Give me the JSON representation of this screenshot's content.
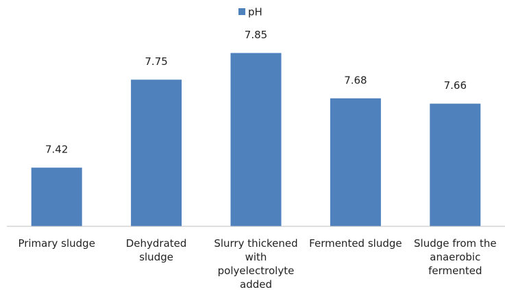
{
  "chart_data": {
    "type": "bar",
    "categories": [
      "Primary sludge",
      "Dehydrated sludge",
      "Slurry thickened with polyelectrolyte added",
      "Fermented sludge",
      "Sludge from the anaerobic fermented"
    ],
    "series": [
      {
        "name": "pH",
        "color": "#4f81bd",
        "values": [
          7.42,
          7.75,
          7.85,
          7.68,
          7.66
        ]
      }
    ],
    "ylim": [
      7.2,
      7.9
    ],
    "legend": "top"
  }
}
